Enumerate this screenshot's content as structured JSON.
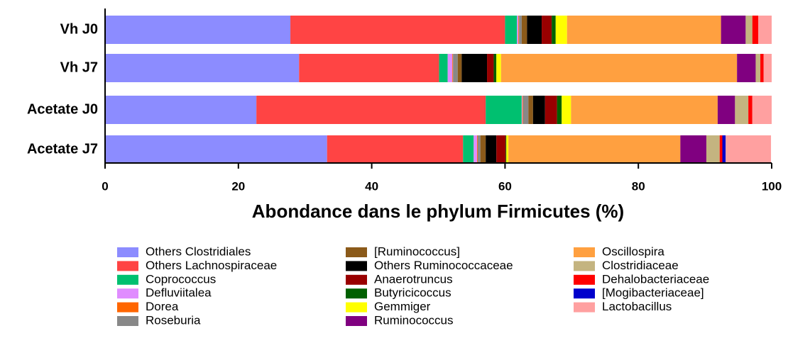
{
  "chart_data": {
    "type": "stacked_barh",
    "x_label": "Abondance dans le phylum Firmicutes (%)",
    "categories": [
      "Vh J0",
      "Vh J7",
      "Acetate J0",
      "Acetate J7"
    ],
    "xlim": [
      0,
      100
    ],
    "xticks": [
      0,
      20,
      40,
      60,
      80,
      100
    ],
    "series": [
      {
        "name": "Others Clostridiales",
        "color": "#8c8cff",
        "values": [
          27.8,
          29.1,
          22.7,
          33.3
        ]
      },
      {
        "name": "Others Lachnospiraceae",
        "color": "#ff4444",
        "values": [
          32.2,
          21.0,
          34.4,
          20.4
        ]
      },
      {
        "name": "Coprococcus",
        "color": "#00c070",
        "values": [
          1.8,
          1.3,
          5.4,
          1.6
        ]
      },
      {
        "name": "Defluviitalea",
        "color": "#e08cff",
        "values": [
          0.2,
          0.7,
          0.1,
          0.5
        ]
      },
      {
        "name": "Dorea",
        "color": "#ff6600",
        "values": [
          0.1,
          0.1,
          0.1,
          0.1
        ]
      },
      {
        "name": "Roseburia",
        "color": "#888888",
        "values": [
          0.4,
          0.7,
          0.8,
          0.4
        ]
      },
      {
        "name": "[Ruminococcus]",
        "color": "#8b5a1a",
        "values": [
          0.8,
          0.6,
          0.7,
          0.8
        ]
      },
      {
        "name": "Others Ruminococcaceae",
        "color": "#000000",
        "values": [
          2.2,
          3.8,
          1.8,
          1.6
        ]
      },
      {
        "name": "Anaerotruncus",
        "color": "#990000",
        "values": [
          1.5,
          1.0,
          1.8,
          1.4
        ]
      },
      {
        "name": "Butyricicoccus",
        "color": "#006000",
        "values": [
          0.6,
          0.4,
          0.7,
          0.1
        ]
      },
      {
        "name": "Gemmiger",
        "color": "#ffff00",
        "values": [
          1.7,
          0.7,
          1.4,
          0.3
        ]
      },
      {
        "name": "Oscillospira",
        "color": "#ffa040",
        "values": [
          23.1,
          35.4,
          22.0,
          25.8
        ]
      },
      {
        "name": "Ruminococcus",
        "color": "#800080",
        "values": [
          3.7,
          2.8,
          2.6,
          3.9
        ]
      },
      {
        "name": "Clostridiaceae",
        "color": "#c4b480",
        "values": [
          1.0,
          0.7,
          2.0,
          2.0
        ]
      },
      {
        "name": "Dehalobacteriaceae",
        "color": "#ff0000",
        "values": [
          0.9,
          0.5,
          0.6,
          0.4
        ]
      },
      {
        "name": "[Mogibacteriaceae]",
        "color": "#0000cc",
        "values": [
          0,
          0,
          0,
          0.5
        ]
      },
      {
        "name": "Lactobacillus",
        "color": "#ffa0a0",
        "values": [
          2.0,
          1.2,
          2.9,
          6.8
        ]
      }
    ]
  }
}
